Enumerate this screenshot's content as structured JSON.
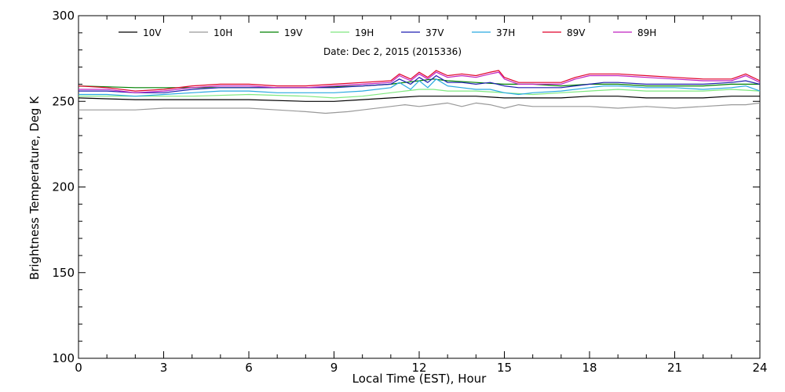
{
  "chart_data": {
    "type": "line",
    "date_label": "Date: Dec  2, 2015 (2015336)",
    "xlabel": "Local Time (EST), Hour",
    "ylabel": "Brightness Temperature, Deg  K",
    "xlim": [
      0,
      24
    ],
    "ylim": [
      100,
      300
    ],
    "x_ticks": [
      0,
      3,
      6,
      9,
      12,
      15,
      18,
      21,
      24
    ],
    "y_ticks": [
      100,
      150,
      200,
      250,
      300
    ],
    "grid": false,
    "legend_position": "top",
    "series": [
      {
        "name": "10V",
        "color": "#000000",
        "x": [
          0,
          2,
          4,
          6,
          8,
          9,
          10,
          11,
          12,
          13,
          14,
          15,
          16,
          17,
          18,
          19,
          20,
          21,
          22,
          23,
          24
        ],
        "y": [
          252,
          251,
          251,
          251,
          250,
          250,
          251,
          252,
          253,
          253,
          253,
          252,
          252,
          252,
          253,
          253,
          252,
          252,
          252,
          253,
          253
        ]
      },
      {
        "name": "10H",
        "color": "#999999",
        "x": [
          0,
          1,
          2,
          3,
          4,
          5,
          6,
          7,
          8,
          8.7,
          9.5,
          10,
          11,
          11.5,
          12,
          12.5,
          13,
          13.5,
          14,
          14.5,
          15,
          15.5,
          16,
          17,
          18,
          19,
          20,
          21,
          22,
          23,
          23.5,
          24
        ],
        "y": [
          245,
          245,
          245,
          246,
          246,
          246,
          246,
          245,
          244,
          243,
          244,
          245,
          247,
          248,
          247,
          248,
          249,
          247,
          249,
          248,
          246,
          248,
          247,
          247,
          247,
          246,
          247,
          246,
          247,
          248,
          248,
          249
        ]
      },
      {
        "name": "19V",
        "color": "#008000",
        "x": [
          0,
          2,
          4,
          6,
          8,
          10,
          11,
          11.5,
          12,
          12.5,
          13,
          14,
          15,
          16,
          17,
          18,
          19,
          20,
          21,
          22,
          23,
          24
        ],
        "y": [
          259,
          258,
          258,
          258,
          258,
          259,
          260,
          261,
          262,
          263,
          262,
          261,
          260,
          260,
          259,
          260,
          260,
          259,
          259,
          259,
          260,
          260
        ]
      },
      {
        "name": "19H",
        "color": "#7FE87F",
        "x": [
          0,
          2,
          3,
          4,
          6,
          8,
          9,
          10,
          11,
          11.5,
          12,
          12.5,
          13,
          14,
          15,
          16,
          17,
          18,
          19,
          20,
          21,
          22,
          23,
          24
        ],
        "y": [
          253,
          253,
          253,
          253,
          254,
          253,
          252,
          253,
          255,
          256,
          257,
          257,
          256,
          256,
          255,
          254,
          255,
          256,
          257,
          256,
          256,
          256,
          257,
          256
        ]
      },
      {
        "name": "37V",
        "color": "#1F1FB0",
        "x": [
          0,
          1,
          2,
          3,
          4,
          5,
          6,
          7,
          8,
          9,
          10,
          11,
          11.3,
          11.7,
          12,
          12.3,
          12.6,
          13,
          13.5,
          14,
          14.5,
          15,
          15.5,
          16,
          17,
          18,
          18.5,
          19,
          20,
          21,
          22,
          23,
          23.5,
          24
        ],
        "y": [
          256,
          256,
          255,
          255,
          257,
          258,
          258,
          258,
          258,
          258,
          259,
          260,
          263,
          260,
          264,
          261,
          265,
          261,
          261,
          260,
          261,
          259,
          258,
          258,
          258,
          260,
          261,
          261,
          260,
          260,
          260,
          261,
          262,
          260
        ]
      },
      {
        "name": "37H",
        "color": "#29A9E0",
        "x": [
          0,
          1,
          2,
          3,
          4,
          5,
          6,
          7,
          8,
          9,
          10,
          11,
          11.3,
          11.7,
          12,
          12.3,
          12.6,
          13,
          13.5,
          14,
          14.5,
          15,
          15.5,
          16,
          17,
          18,
          18.5,
          19,
          20,
          21,
          22,
          23,
          23.5,
          24
        ],
        "y": [
          254,
          254,
          253,
          254,
          255,
          256,
          256,
          255,
          255,
          255,
          256,
          258,
          261,
          257,
          262,
          258,
          263,
          259,
          258,
          257,
          257,
          255,
          254,
          255,
          256,
          258,
          259,
          259,
          258,
          258,
          257,
          258,
          259,
          256
        ]
      },
      {
        "name": "89V",
        "color": "#E0002A",
        "x": [
          0,
          1,
          2,
          3,
          4,
          5,
          6,
          7,
          8,
          9,
          10,
          11,
          11.3,
          11.7,
          12,
          12.3,
          12.6,
          13,
          13.5,
          14,
          14.5,
          14.8,
          15,
          15.5,
          16,
          17,
          17.5,
          18,
          18.5,
          19,
          20,
          21,
          22,
          23,
          23.5,
          24
        ],
        "y": [
          259,
          258,
          256,
          257,
          259,
          260,
          260,
          259,
          259,
          260,
          261,
          262,
          266,
          263,
          267,
          264,
          268,
          265,
          266,
          265,
          267,
          268,
          264,
          261,
          261,
          261,
          264,
          266,
          266,
          266,
          265,
          264,
          263,
          263,
          266,
          262
        ]
      },
      {
        "name": "89H",
        "color": "#C020C0",
        "x": [
          0,
          1,
          2,
          3,
          4,
          5,
          6,
          7,
          8,
          9,
          10,
          11,
          11.3,
          11.7,
          12,
          12.3,
          12.6,
          13,
          13.5,
          14,
          14.5,
          14.8,
          15,
          15.5,
          16,
          17,
          17.5,
          18,
          18.5,
          19,
          20,
          21,
          22,
          23,
          23.5,
          24
        ],
        "y": [
          257,
          257,
          255,
          256,
          258,
          259,
          259,
          258,
          258,
          259,
          260,
          261,
          265,
          262,
          266,
          263,
          267,
          264,
          265,
          264,
          266,
          267,
          263,
          260,
          260,
          260,
          263,
          265,
          265,
          265,
          264,
          263,
          262,
          262,
          265,
          261
        ]
      }
    ]
  }
}
